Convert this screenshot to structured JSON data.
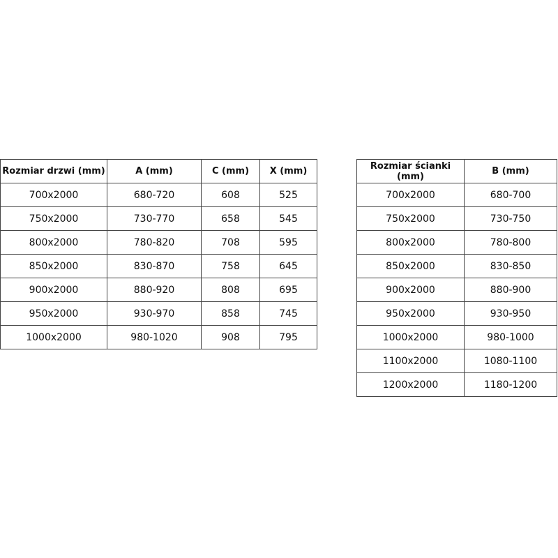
{
  "door_table": {
    "headers": [
      "Rozmiar drzwi (mm)",
      "A (mm)",
      "C (mm)",
      "X (mm)"
    ],
    "rows": [
      [
        "700x2000",
        "680-720",
        "608",
        "525"
      ],
      [
        "750x2000",
        "730-770",
        "658",
        "545"
      ],
      [
        "800x2000",
        "780-820",
        "708",
        "595"
      ],
      [
        "850x2000",
        "830-870",
        "758",
        "645"
      ],
      [
        "900x2000",
        "880-920",
        "808",
        "695"
      ],
      [
        "950x2000",
        "930-970",
        "858",
        "745"
      ],
      [
        "1000x2000",
        "980-1020",
        "908",
        "795"
      ]
    ]
  },
  "wall_table": {
    "headers": [
      "Rozmiar ścianki (mm)",
      "B (mm)"
    ],
    "rows": [
      [
        "700x2000",
        "680-700"
      ],
      [
        "750x2000",
        "730-750"
      ],
      [
        "800x2000",
        "780-800"
      ],
      [
        "850x2000",
        "830-850"
      ],
      [
        "900x2000",
        "880-900"
      ],
      [
        "950x2000",
        "930-950"
      ],
      [
        "1000x2000",
        "980-1000"
      ],
      [
        "1100x2000",
        "1080-1100"
      ],
      [
        "1200x2000",
        "1180-1200"
      ]
    ]
  }
}
